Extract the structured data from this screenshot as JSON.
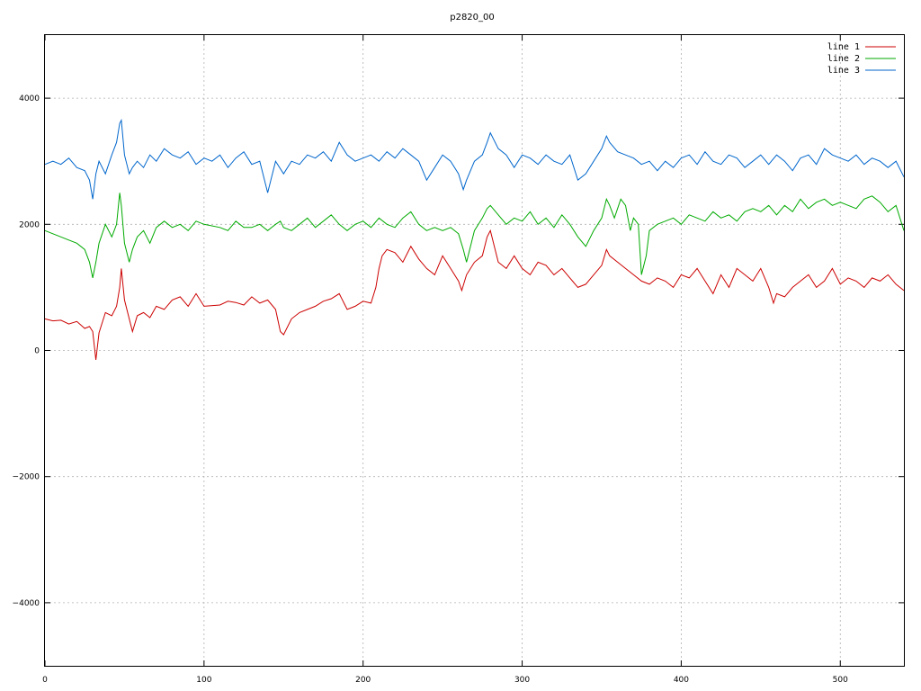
{
  "chart_data": {
    "type": "line",
    "title": "p2820_00",
    "xlim": [
      0,
      540
    ],
    "ylim": [
      -5000,
      5000
    ],
    "xticks": [
      0,
      100,
      200,
      300,
      400,
      500
    ],
    "yticks": [
      -4000,
      -2000,
      0,
      2000,
      4000
    ],
    "grid": true,
    "legend_position": "top-right",
    "series": [
      {
        "name": "line 1",
        "color": "#cc0000",
        "x": [
          0,
          5,
          10,
          15,
          20,
          25,
          28,
          30,
          32,
          34,
          38,
          42,
          45,
          47,
          48,
          50,
          53,
          55,
          58,
          62,
          66,
          70,
          75,
          80,
          85,
          90,
          95,
          100,
          110,
          115,
          120,
          125,
          130,
          135,
          140,
          145,
          148,
          150,
          155,
          160,
          165,
          170,
          175,
          180,
          185,
          190,
          195,
          200,
          205,
          208,
          210,
          212,
          215,
          220,
          225,
          230,
          235,
          240,
          245,
          250,
          255,
          260,
          262,
          265,
          270,
          275,
          278,
          280,
          285,
          290,
          295,
          300,
          305,
          310,
          315,
          320,
          325,
          330,
          335,
          340,
          345,
          350,
          353,
          355,
          360,
          365,
          370,
          375,
          380,
          385,
          390,
          395,
          400,
          405,
          410,
          415,
          420,
          425,
          430,
          435,
          440,
          445,
          450,
          455,
          458,
          460,
          465,
          470,
          475,
          480,
          485,
          490,
          495,
          500,
          505,
          510,
          515,
          520,
          525,
          530,
          535,
          540
        ],
        "y": [
          500,
          470,
          480,
          420,
          460,
          350,
          380,
          300,
          -150,
          280,
          600,
          550,
          700,
          1000,
          1300,
          800,
          500,
          300,
          550,
          600,
          520,
          700,
          650,
          800,
          850,
          700,
          900,
          700,
          720,
          780,
          760,
          720,
          850,
          750,
          800,
          650,
          300,
          250,
          500,
          600,
          650,
          700,
          780,
          820,
          900,
          650,
          700,
          780,
          750,
          1000,
          1300,
          1500,
          1600,
          1550,
          1400,
          1650,
          1450,
          1300,
          1200,
          1500,
          1300,
          1100,
          950,
          1200,
          1400,
          1500,
          1800,
          1900,
          1400,
          1300,
          1500,
          1300,
          1200,
          1400,
          1350,
          1200,
          1300,
          1150,
          1000,
          1050,
          1200,
          1350,
          1600,
          1500,
          1400,
          1300,
          1200,
          1100,
          1050,
          1150,
          1100,
          1000,
          1200,
          1150,
          1300,
          1100,
          900,
          1200,
          1000,
          1300,
          1200,
          1100,
          1300,
          1000,
          750,
          900,
          850,
          1000,
          1100,
          1200,
          1000,
          1100,
          1300,
          1050,
          1150,
          1100,
          1000,
          1150,
          1100,
          1200,
          1050,
          950
        ]
      },
      {
        "name": "line 2",
        "color": "#00aa00",
        "x": [
          0,
          5,
          10,
          15,
          20,
          25,
          28,
          30,
          32,
          34,
          38,
          42,
          45,
          47,
          48,
          50,
          53,
          55,
          58,
          62,
          66,
          70,
          75,
          80,
          85,
          90,
          95,
          100,
          110,
          115,
          120,
          125,
          130,
          135,
          140,
          145,
          148,
          150,
          155,
          160,
          165,
          170,
          175,
          180,
          185,
          190,
          195,
          200,
          205,
          210,
          215,
          220,
          225,
          230,
          235,
          240,
          245,
          250,
          255,
          260,
          263,
          265,
          268,
          270,
          275,
          278,
          280,
          285,
          290,
          295,
          300,
          305,
          310,
          315,
          320,
          325,
          330,
          335,
          340,
          345,
          350,
          353,
          355,
          358,
          362,
          365,
          368,
          370,
          373,
          375,
          378,
          380,
          385,
          390,
          395,
          400,
          405,
          410,
          415,
          420,
          425,
          430,
          435,
          440,
          445,
          450,
          455,
          460,
          465,
          470,
          475,
          480,
          485,
          490,
          495,
          500,
          505,
          510,
          515,
          520,
          525,
          530,
          535,
          540
        ],
        "y": [
          1900,
          1850,
          1800,
          1750,
          1700,
          1600,
          1400,
          1150,
          1400,
          1700,
          2000,
          1800,
          2000,
          2500,
          2300,
          1700,
          1400,
          1600,
          1800,
          1900,
          1700,
          1950,
          2050,
          1950,
          2000,
          1900,
          2050,
          2000,
          1950,
          1900,
          2050,
          1950,
          1950,
          2000,
          1900,
          2000,
          2050,
          1950,
          1900,
          2000,
          2100,
          1950,
          2050,
          2150,
          2000,
          1900,
          2000,
          2050,
          1950,
          2100,
          2000,
          1950,
          2100,
          2200,
          2000,
          1900,
          1950,
          1900,
          1950,
          1850,
          1600,
          1400,
          1700,
          1900,
          2100,
          2250,
          2300,
          2150,
          2000,
          2100,
          2050,
          2200,
          2000,
          2100,
          1950,
          2150,
          2000,
          1800,
          1650,
          1900,
          2100,
          2400,
          2300,
          2100,
          2400,
          2300,
          1900,
          2100,
          2000,
          1200,
          1500,
          1900,
          2000,
          2050,
          2100,
          2000,
          2150,
          2100,
          2050,
          2200,
          2100,
          2150,
          2050,
          2200,
          2250,
          2200,
          2300,
          2150,
          2300,
          2200,
          2400,
          2250,
          2350,
          2400,
          2300,
          2350,
          2300,
          2250,
          2400,
          2450,
          2350,
          2200,
          2300,
          1900
        ]
      },
      {
        "name": "line 3",
        "color": "#0066cc",
        "x": [
          0,
          5,
          10,
          15,
          20,
          25,
          28,
          30,
          32,
          34,
          38,
          42,
          45,
          47,
          48,
          50,
          53,
          55,
          58,
          62,
          66,
          70,
          75,
          80,
          85,
          90,
          95,
          100,
          105,
          110,
          115,
          120,
          125,
          130,
          135,
          138,
          140,
          145,
          150,
          155,
          160,
          165,
          170,
          175,
          180,
          185,
          190,
          195,
          200,
          205,
          210,
          215,
          220,
          225,
          230,
          235,
          240,
          245,
          250,
          255,
          260,
          263,
          265,
          270,
          275,
          278,
          280,
          285,
          290,
          295,
          300,
          305,
          310,
          315,
          320,
          325,
          330,
          335,
          340,
          345,
          350,
          353,
          355,
          360,
          365,
          370,
          375,
          380,
          385,
          390,
          395,
          400,
          405,
          410,
          415,
          420,
          425,
          430,
          435,
          440,
          445,
          450,
          455,
          460,
          465,
          470,
          475,
          480,
          485,
          490,
          495,
          500,
          505,
          510,
          515,
          520,
          525,
          530,
          535,
          540
        ],
        "y": [
          2950,
          3000,
          2950,
          3050,
          2900,
          2850,
          2700,
          2400,
          2800,
          3000,
          2800,
          3100,
          3300,
          3600,
          3650,
          3100,
          2800,
          2900,
          3000,
          2900,
          3100,
          3000,
          3200,
          3100,
          3050,
          3150,
          2950,
          3050,
          3000,
          3100,
          2900,
          3050,
          3150,
          2950,
          3000,
          2700,
          2500,
          3000,
          2800,
          3000,
          2950,
          3100,
          3050,
          3150,
          3000,
          3300,
          3100,
          3000,
          3050,
          3100,
          3000,
          3150,
          3050,
          3200,
          3100,
          3000,
          2700,
          2900,
          3100,
          3000,
          2800,
          2550,
          2700,
          3000,
          3100,
          3300,
          3450,
          3200,
          3100,
          2900,
          3100,
          3050,
          2950,
          3100,
          3000,
          2950,
          3100,
          2700,
          2800,
          3000,
          3200,
          3400,
          3300,
          3150,
          3100,
          3050,
          2950,
          3000,
          2850,
          3000,
          2900,
          3050,
          3100,
          2950,
          3150,
          3000,
          2950,
          3100,
          3050,
          2900,
          3000,
          3100,
          2950,
          3100,
          3000,
          2850,
          3050,
          3100,
          2950,
          3200,
          3100,
          3050,
          3000,
          3100,
          2950,
          3050,
          3000,
          2900,
          3000,
          2750
        ]
      }
    ]
  }
}
